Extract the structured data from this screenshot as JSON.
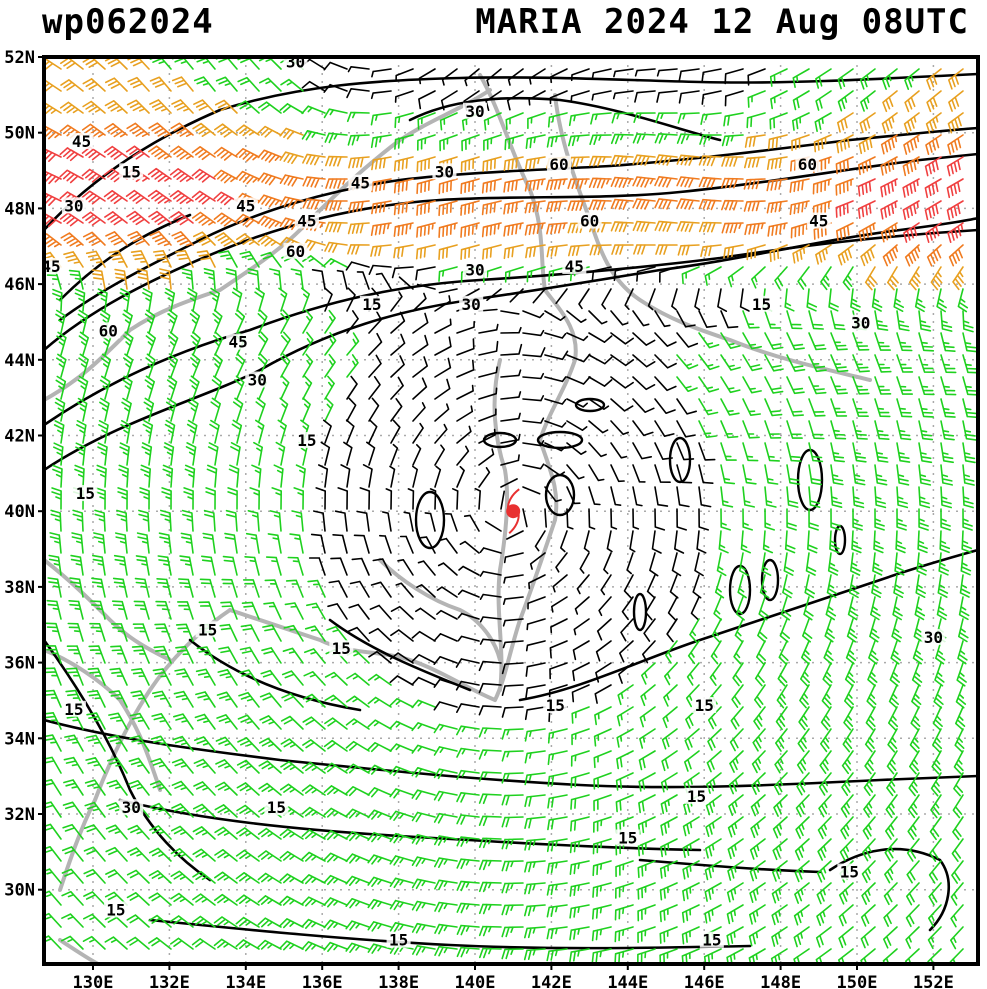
{
  "header": {
    "storm_id": "wp062024",
    "storm_info": "MARIA 2024 12 Aug 08UTC"
  },
  "axes": {
    "lat_labels": [
      "52N",
      "50N",
      "48N",
      "46N",
      "44N",
      "42N",
      "40N",
      "38N",
      "36N",
      "34N",
      "32N",
      "30N"
    ],
    "lon_labels": [
      "130E",
      "132E",
      "134E",
      "136E",
      "138E",
      "140E",
      "142E",
      "144E",
      "146E",
      "148E",
      "150E",
      "152E"
    ]
  },
  "storm_center": {
    "lat": 40.0,
    "lon": 141.0,
    "color": "#e83030"
  },
  "wind_colors": {
    "calm": "#000000",
    "speed_15_30": "#1fd11f",
    "speed_30_45": "#e8a020",
    "speed_45_60": "#f07b20",
    "speed_60_plus": "#f04040",
    "coastline": "#b4b4b4",
    "contour": "#000000"
  },
  "contour_labels": [
    {
      "text": "30",
      "lon": 135.3,
      "lat": 51.8
    },
    {
      "text": "45",
      "lon": 129.7,
      "lat": 49.7
    },
    {
      "text": "15",
      "lon": 131.0,
      "lat": 48.9
    },
    {
      "text": "30",
      "lon": 129.5,
      "lat": 48.0
    },
    {
      "text": "30",
      "lon": 140.0,
      "lat": 50.5
    },
    {
      "text": "30",
      "lon": 139.2,
      "lat": 48.9
    },
    {
      "text": "60",
      "lon": 142.2,
      "lat": 49.1
    },
    {
      "text": "60",
      "lon": 148.7,
      "lat": 49.1
    },
    {
      "text": "45",
      "lon": 137.0,
      "lat": 48.6
    },
    {
      "text": "45",
      "lon": 134.0,
      "lat": 48.0
    },
    {
      "text": "45",
      "lon": 135.6,
      "lat": 47.6
    },
    {
      "text": "60",
      "lon": 143.0,
      "lat": 47.6
    },
    {
      "text": "45",
      "lon": 149.0,
      "lat": 47.6
    },
    {
      "text": "60",
      "lon": 135.3,
      "lat": 46.8
    },
    {
      "text": "45",
      "lon": 128.9,
      "lat": 46.4
    },
    {
      "text": "30",
      "lon": 140.0,
      "lat": 46.3
    },
    {
      "text": "45",
      "lon": 142.6,
      "lat": 46.4
    },
    {
      "text": "15",
      "lon": 137.3,
      "lat": 45.4
    },
    {
      "text": "30",
      "lon": 139.9,
      "lat": 45.4
    },
    {
      "text": "15",
      "lon": 147.5,
      "lat": 45.4
    },
    {
      "text": "30",
      "lon": 150.1,
      "lat": 44.9
    },
    {
      "text": "60",
      "lon": 130.4,
      "lat": 44.7
    },
    {
      "text": "45",
      "lon": 133.8,
      "lat": 44.4
    },
    {
      "text": "30",
      "lon": 134.3,
      "lat": 43.4
    },
    {
      "text": "15",
      "lon": 135.6,
      "lat": 41.8
    },
    {
      "text": "15",
      "lon": 129.8,
      "lat": 40.4
    },
    {
      "text": "30",
      "lon": 152.0,
      "lat": 36.6
    },
    {
      "text": "15",
      "lon": 133.0,
      "lat": 36.8
    },
    {
      "text": "15",
      "lon": 136.5,
      "lat": 36.3
    },
    {
      "text": "15",
      "lon": 129.5,
      "lat": 34.7
    },
    {
      "text": "15",
      "lon": 142.1,
      "lat": 34.8
    },
    {
      "text": "15",
      "lon": 146.0,
      "lat": 34.8
    },
    {
      "text": "30",
      "lon": 131.0,
      "lat": 32.1
    },
    {
      "text": "15",
      "lon": 134.8,
      "lat": 32.1
    },
    {
      "text": "15",
      "lon": 145.8,
      "lat": 32.4
    },
    {
      "text": "15",
      "lon": 144.0,
      "lat": 31.3
    },
    {
      "text": "15",
      "lon": 149.8,
      "lat": 30.4
    },
    {
      "text": "15",
      "lon": 130.6,
      "lat": 29.4
    },
    {
      "text": "15",
      "lon": 138.0,
      "lat": 28.6
    },
    {
      "text": "15",
      "lon": 146.2,
      "lat": 28.6
    }
  ]
}
